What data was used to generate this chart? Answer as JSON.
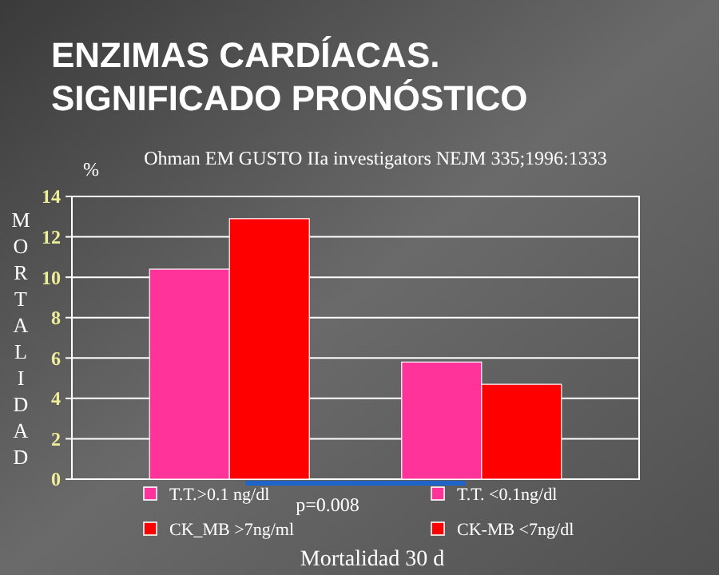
{
  "chart_data": {
    "type": "bar",
    "title": "ENZIMAS CARDÍACAS.\nSIGNIFICADO PRONÓSTICO",
    "subtitle": "Ohman EM GUSTO  IIa investigators NEJM 335;1996:1333",
    "ylabel": "MORTALIDAD",
    "xlabel": "Mortalidad 30 d",
    "annotations": [
      "%",
      "p=0.008"
    ],
    "categories": [
      null,
      null
    ],
    "series": [
      {
        "name": "T.T.>0.1 ng/dl",
        "color": "#ff3399",
        "values": [
          10.4,
          null
        ]
      },
      {
        "name": "CK_MB >7ng/ml",
        "color": "#ff0000",
        "values": [
          12.9,
          null
        ]
      },
      {
        "name": "T.T. <0.1ng/dl",
        "color": "#ff3399",
        "values": [
          null,
          5.8
        ]
      },
      {
        "name": "CK-MB <7ng/dl",
        "color": "#ff0000",
        "values": [
          null,
          4.7
        ]
      }
    ],
    "ylim": [
      0,
      14
    ],
    "yticks": [
      0,
      2,
      4,
      6,
      8,
      10,
      12,
      14
    ],
    "grid": true,
    "legend": "bottom"
  }
}
